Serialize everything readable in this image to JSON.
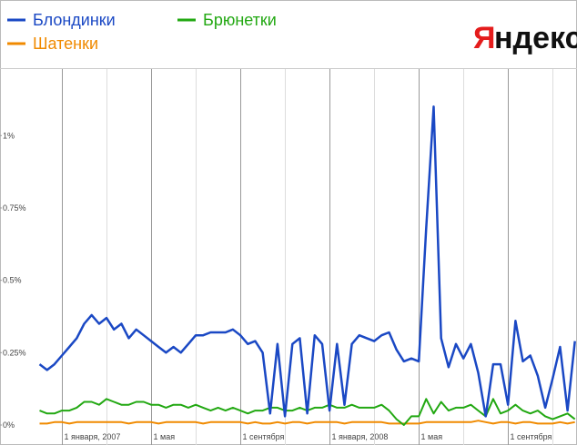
{
  "chart_data": {
    "type": "line",
    "categories": [
      null,
      null,
      null,
      "1 января, 2007",
      null,
      null,
      null,
      null,
      null,
      null,
      null,
      null,
      null,
      null,
      null,
      "1 мая",
      null,
      null,
      null,
      null,
      null,
      null,
      null,
      null,
      null,
      null,
      null,
      "1 сентября",
      null,
      null,
      null,
      null,
      null,
      null,
      null,
      null,
      null,
      null,
      null,
      "1 января, 2008",
      null,
      null,
      null,
      null,
      null,
      null,
      null,
      null,
      null,
      null,
      null,
      "1 мая",
      null,
      null,
      null,
      null,
      null,
      null,
      null,
      null,
      null,
      null,
      null,
      "1 сентября",
      null,
      null,
      null,
      null,
      null,
      null,
      null,
      null,
      null
    ],
    "series": [
      {
        "name": "Блондинки",
        "color": "#1a48c4",
        "values": [
          0.21,
          0.19,
          0.21,
          0.24,
          0.27,
          0.3,
          0.35,
          0.38,
          0.35,
          0.37,
          0.33,
          0.35,
          0.3,
          0.33,
          0.31,
          0.29,
          0.27,
          0.25,
          0.27,
          0.25,
          0.28,
          0.31,
          0.31,
          0.32,
          0.32,
          0.32,
          0.33,
          0.31,
          0.28,
          0.29,
          0.25,
          0.04,
          0.28,
          0.03,
          0.28,
          0.3,
          0.04,
          0.31,
          0.28,
          0.05,
          0.28,
          0.07,
          0.28,
          0.31,
          0.3,
          0.29,
          0.31,
          0.32,
          0.26,
          0.22,
          0.23,
          0.22,
          0.68,
          1.1,
          0.3,
          0.2,
          0.28,
          0.23,
          0.28,
          0.18,
          0.03,
          0.21,
          0.21,
          0.07,
          0.36,
          0.22,
          0.24,
          0.17,
          0.06,
          0.16,
          0.27,
          0.05,
          0.29
        ]
      },
      {
        "name": "Брюнетки",
        "color": "#22a812",
        "values": [
          0.05,
          0.04,
          0.04,
          0.05,
          0.05,
          0.06,
          0.08,
          0.08,
          0.07,
          0.09,
          0.08,
          0.07,
          0.07,
          0.08,
          0.08,
          0.07,
          0.07,
          0.06,
          0.07,
          0.07,
          0.06,
          0.07,
          0.06,
          0.05,
          0.06,
          0.05,
          0.06,
          0.05,
          0.04,
          0.05,
          0.05,
          0.06,
          0.06,
          0.05,
          0.05,
          0.06,
          0.05,
          0.06,
          0.06,
          0.07,
          0.06,
          0.06,
          0.07,
          0.06,
          0.06,
          0.06,
          0.07,
          0.05,
          0.02,
          0.0,
          0.03,
          0.03,
          0.09,
          0.04,
          0.08,
          0.05,
          0.06,
          0.06,
          0.07,
          0.05,
          0.03,
          0.09,
          0.04,
          0.05,
          0.07,
          0.05,
          0.04,
          0.05,
          0.03,
          0.02,
          0.03,
          0.04,
          0.02
        ]
      },
      {
        "name": "Шатенки",
        "color": "#f08a00",
        "values": [
          0.005,
          0.005,
          0.01,
          0.01,
          0.005,
          0.01,
          0.01,
          0.01,
          0.01,
          0.01,
          0.01,
          0.01,
          0.005,
          0.01,
          0.01,
          0.01,
          0.005,
          0.01,
          0.01,
          0.01,
          0.01,
          0.01,
          0.005,
          0.01,
          0.01,
          0.01,
          0.01,
          0.01,
          0.005,
          0.01,
          0.005,
          0.005,
          0.01,
          0.005,
          0.01,
          0.01,
          0.005,
          0.01,
          0.01,
          0.01,
          0.01,
          0.005,
          0.01,
          0.01,
          0.01,
          0.01,
          0.01,
          0.005,
          0.005,
          0.005,
          0.005,
          0.005,
          0.01,
          0.01,
          0.01,
          0.01,
          0.01,
          0.01,
          0.01,
          0.015,
          0.01,
          0.005,
          0.01,
          0.01,
          0.005,
          0.01,
          0.01,
          0.005,
          0.005,
          0.005,
          0.01,
          0.005,
          0.01
        ]
      }
    ],
    "ylim": [
      0,
      1.23
    ],
    "yticks": [
      {
        "value": 0,
        "label": "0%"
      },
      {
        "value": 0.25,
        "label": "0.25%"
      },
      {
        "value": 0.5,
        "label": "0.5%"
      },
      {
        "value": 0.75,
        "label": "0.75%"
      },
      {
        "value": 1,
        "label": "1%"
      }
    ],
    "xgrid": true
  },
  "logo": {
    "accent": "Я",
    "rest": "ндекс"
  }
}
